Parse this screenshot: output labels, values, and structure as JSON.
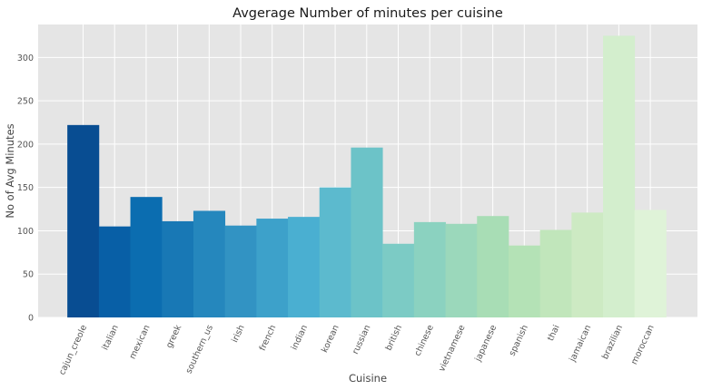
{
  "chart_data": {
    "type": "bar",
    "title": "Avgerage Number of minutes per cuisine",
    "xlabel": "Cuisine",
    "ylabel": "No of Avg Minutes",
    "ylim": [
      0,
      338
    ],
    "yticks": [
      0,
      50,
      100,
      150,
      200,
      250,
      300
    ],
    "grid": true,
    "categories": [
      "cajun_creole",
      "italian",
      "mexican",
      "greek",
      "southern_us",
      "irish",
      "french",
      "indian",
      "korean",
      "russian",
      "british",
      "chinese",
      "vietnamese",
      "japanese",
      "spanish",
      "thai",
      "jamaican",
      "brazilian",
      "moroccan"
    ],
    "values": [
      222,
      105,
      139,
      111,
      123,
      106,
      114,
      116,
      150,
      196,
      85,
      110,
      108,
      117,
      83,
      101,
      121,
      325,
      124
    ],
    "colors": [
      "#084d92",
      "#085fa6",
      "#0b6db0",
      "#1878b5",
      "#2587bd",
      "#3293c3",
      "#3da1ca",
      "#4aafd1",
      "#5cbace",
      "#6cc3c8",
      "#7ccbc5",
      "#8bd2c0",
      "#9bd8bb",
      "#a8ddb5",
      "#b4e2b6",
      "#c1e6bb",
      "#cdeac3",
      "#d3eecd",
      "#dff3d8"
    ]
  }
}
